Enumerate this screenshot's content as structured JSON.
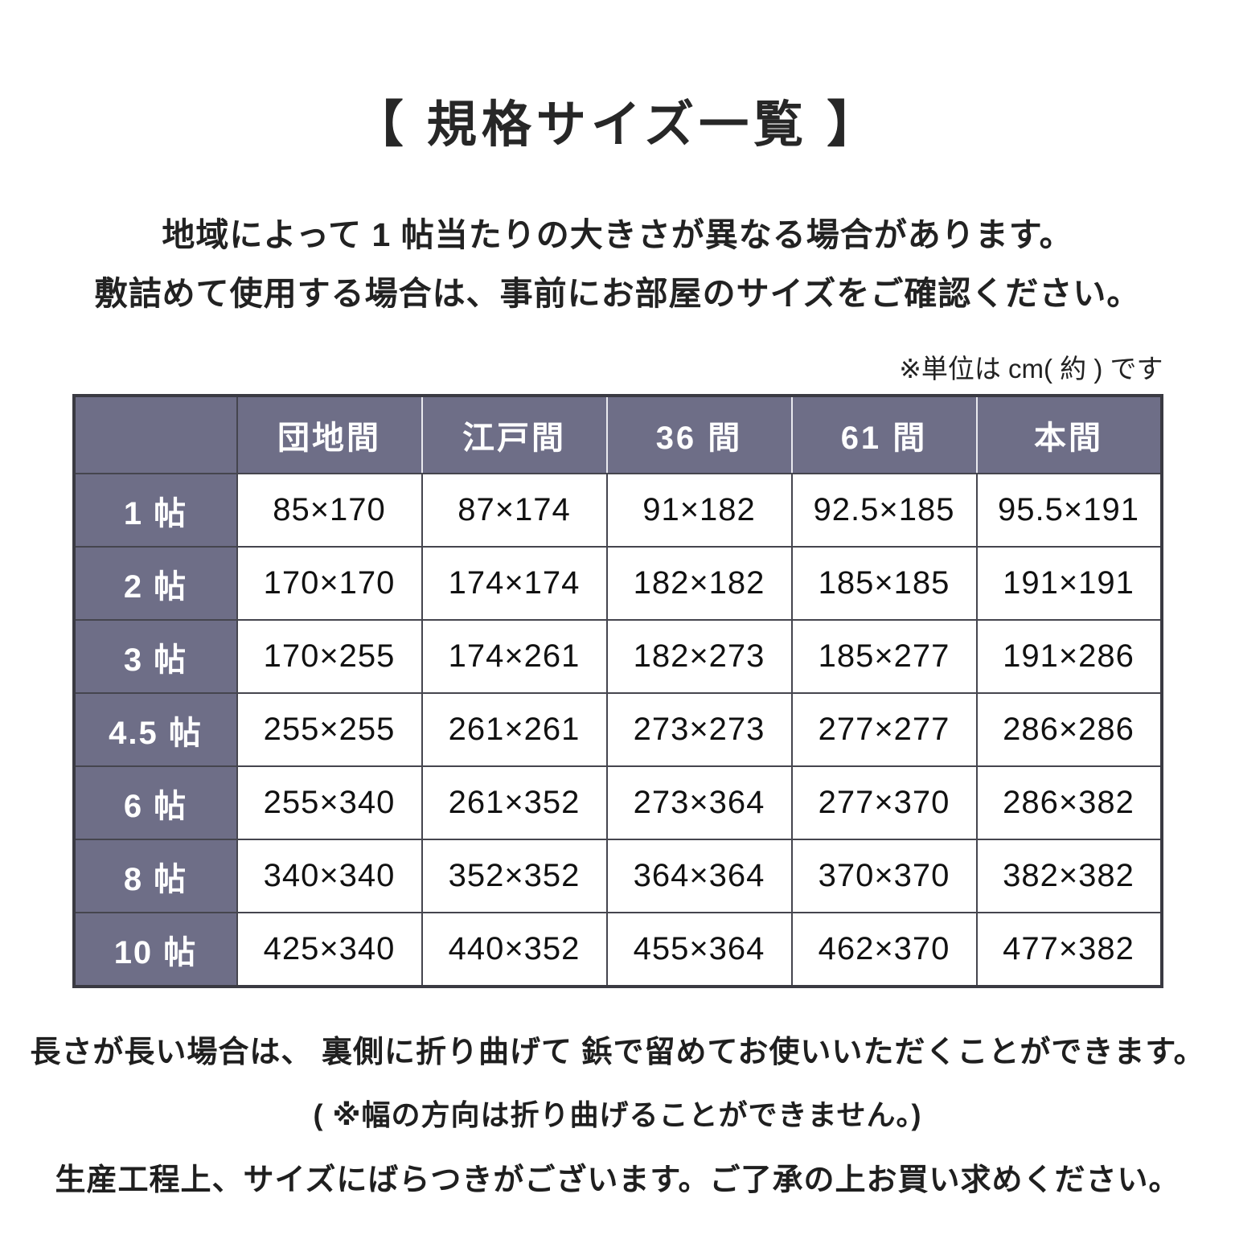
{
  "page": {
    "title": "【 規格サイズ一覧 】",
    "intro_lines": [
      "地域によって 1 帖当たりの大きさが異なる場合があります。",
      "敷詰めて使用する場合は、事前にお部屋のサイズをご確認ください。"
    ],
    "unit_note": "※単位は cm( 約 ) です",
    "footer_lines": [
      "長さが長い場合は、 裏側に折り曲げて 鋲で留めてお使いいただくことができます。",
      "( ※幅の方向は折り曲げることができません。)",
      "生産工程上、サイズにばらつきがございます。ご了承の上お買い求めください。"
    ]
  },
  "chart_data": {
    "type": "table",
    "title": "規格サイズ一覧",
    "unit": "cm(約)",
    "columns": [
      "",
      "団地間",
      "江戸間",
      "36 間",
      "61 間",
      "本間"
    ],
    "rows": [
      {
        "label": "1 帖",
        "values": [
          "85×170",
          "87×174",
          "91×182",
          "92.5×185",
          "95.5×191"
        ]
      },
      {
        "label": "2 帖",
        "values": [
          "170×170",
          "174×174",
          "182×182",
          "185×185",
          "191×191"
        ]
      },
      {
        "label": "3 帖",
        "values": [
          "170×255",
          "174×261",
          "182×273",
          "185×277",
          "191×286"
        ]
      },
      {
        "label": "4.5 帖",
        "values": [
          "255×255",
          "261×261",
          "273×273",
          "277×277",
          "286×286"
        ]
      },
      {
        "label": "6 帖",
        "values": [
          "255×340",
          "261×352",
          "273×364",
          "277×370",
          "286×382"
        ]
      },
      {
        "label": "8 帖",
        "values": [
          "340×340",
          "352×352",
          "364×364",
          "370×370",
          "382×382"
        ]
      },
      {
        "label": "10 帖",
        "values": [
          "425×340",
          "440×352",
          "455×364",
          "462×370",
          "477×382"
        ]
      }
    ]
  },
  "colors": {
    "header_bg": "#6e6e87",
    "border": "#45454e",
    "outer_border": "#3a3a42",
    "text": "#1e1e1e",
    "header_text": "#ffffff"
  }
}
